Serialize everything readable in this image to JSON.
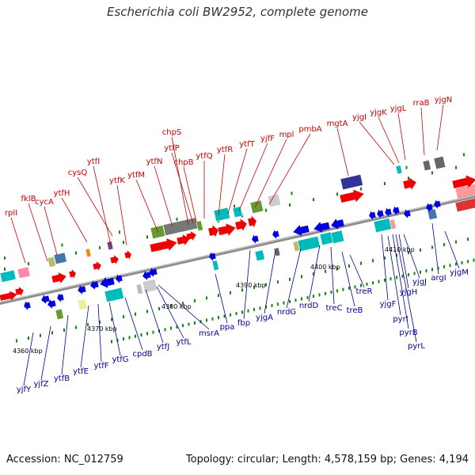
{
  "header": {
    "title": "Escherichia coli BW2952, complete genome"
  },
  "footer": {
    "accession": "Accession: NC_012759",
    "stats": "Topology: circular; Length: 4,578,159 bp; Genes: 4,194"
  },
  "colors": {
    "upper_label": "#cc0000",
    "lower_label": "#000099",
    "forward_gene": "#ee0000",
    "reverse_gene": "#0000dd",
    "backbone": "#8c8c8c",
    "tick": "#118811"
  },
  "kbp_labels": [
    "4360 kbp",
    "4370 kbp",
    "4380 kbp",
    "4390 kbp",
    "4400 kbp",
    "4410 kbp"
  ],
  "upper_genes": [
    "rplI",
    "fklB",
    "cycA",
    "ytfH",
    "cysQ",
    "ytfI",
    "ytfK",
    "ytfM",
    "ytfN",
    "chpS",
    "ytfP",
    "chpB",
    "ytfQ",
    "ytfR",
    "ytfT",
    "yjfF",
    "mpl",
    "pmbA",
    "mgtA",
    "yjgI",
    "yjgK",
    "yjgL",
    "rraB",
    "yjgN"
  ],
  "lower_genes": [
    "yjfY",
    "yjfZ",
    "ytfB",
    "ytfE",
    "ytfF",
    "ytfG",
    "cpdB",
    "ytfJ",
    "ytfL",
    "msrA",
    "ppa",
    "fbp",
    "yjgA",
    "nrdG",
    "nrdD",
    "treC",
    "treB",
    "treR",
    "yjgF",
    "pyrI",
    "pyrB",
    "pyrL",
    "yjgH",
    "yjgJ",
    "argI",
    "yjgM"
  ]
}
